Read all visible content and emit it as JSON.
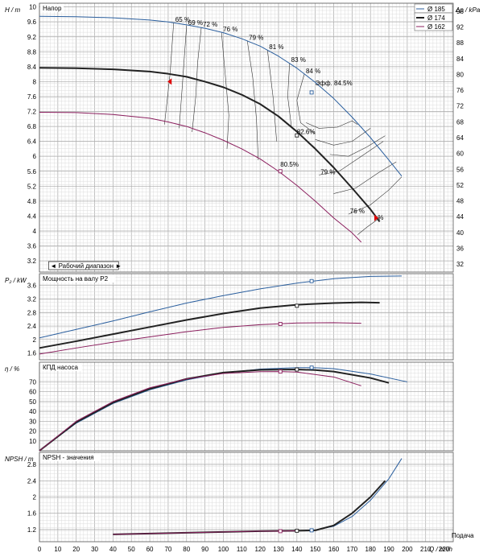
{
  "colors": {
    "d185": "#2b5f9e",
    "d174": "#222222",
    "d162": "#8b1f5e",
    "grid_minor": "#dcdcdc",
    "grid_major": "#a8a8a8",
    "eff_iso": "#333333",
    "red": "#e00000"
  },
  "chart_data": [
    {
      "type": "line",
      "title": "Напор",
      "ylabel": "H / m",
      "ylabel_right": "Δp / kPa",
      "xlim": [
        0,
        225
      ],
      "ylim": [
        2.9,
        10.1
      ],
      "ylim_right": [
        30,
        98
      ],
      "yticks_left": [
        3.2,
        3.6,
        4,
        4.4,
        4.8,
        5.2,
        5.6,
        6,
        6.4,
        6.8,
        7.2,
        7.6,
        8,
        8.4,
        8.8,
        9.2,
        9.6,
        10
      ],
      "yticks_right": [
        32,
        36,
        40,
        44,
        48,
        52,
        56,
        60,
        64,
        68,
        72,
        76,
        80,
        84,
        88,
        92,
        96
      ],
      "legend_position": "top-right",
      "legend": [
        "Ø 185",
        "Ø 174",
        "Ø 162"
      ],
      "series": [
        {
          "name": "Ø 185",
          "color_key": "d185",
          "width": 1,
          "x": [
            0,
            20,
            40,
            60,
            70,
            80,
            90,
            100,
            110,
            120,
            130,
            140,
            150,
            160,
            170,
            180,
            190,
            197
          ],
          "y": [
            9.75,
            9.74,
            9.71,
            9.65,
            9.6,
            9.52,
            9.43,
            9.31,
            9.15,
            8.95,
            8.68,
            8.36,
            7.98,
            7.55,
            7.05,
            6.5,
            5.9,
            5.47
          ]
        },
        {
          "name": "Ø 174",
          "color_key": "d174",
          "width": 2,
          "x": [
            0,
            20,
            40,
            60,
            70,
            80,
            90,
            100,
            110,
            120,
            130,
            140,
            150,
            160,
            170,
            180,
            185
          ],
          "y": [
            8.37,
            8.36,
            8.33,
            8.27,
            8.21,
            8.13,
            8.0,
            7.85,
            7.65,
            7.4,
            7.07,
            6.66,
            6.2,
            5.7,
            5.15,
            4.58,
            4.25
          ]
        },
        {
          "name": "Ø 162",
          "color_key": "d162",
          "width": 1,
          "x": [
            0,
            20,
            40,
            60,
            70,
            80,
            90,
            100,
            110,
            120,
            130,
            140,
            150,
            160,
            170,
            175
          ],
          "y": [
            7.18,
            7.17,
            7.12,
            7.02,
            6.92,
            6.8,
            6.63,
            6.43,
            6.2,
            5.93,
            5.6,
            5.22,
            4.8,
            4.35,
            3.95,
            3.7
          ]
        }
      ],
      "efficiency_isolines": [
        {
          "label": "65 %",
          "x": [
            73,
            71,
            68
          ],
          "y": [
            9.58,
            8.2,
            6.85
          ]
        },
        {
          "label": "69 %",
          "x": [
            80,
            78,
            76
          ],
          "y": [
            9.5,
            8.1,
            6.75
          ]
        },
        {
          "label": "72 %",
          "x": [
            88,
            86,
            85,
            83
          ],
          "y": [
            9.45,
            8.5,
            7.6,
            6.65
          ]
        },
        {
          "label": "76 %",
          "x": [
            99,
            101,
            103,
            102
          ],
          "y": [
            9.32,
            8.2,
            7.1,
            6.2
          ]
        },
        {
          "label": "79 %",
          "x": [
            113,
            116,
            118,
            119
          ],
          "y": [
            9.1,
            8.1,
            7.0,
            5.9
          ]
        },
        {
          "label": "81 %",
          "x": [
            124,
            127,
            129
          ],
          "y": [
            8.85,
            7.6,
            6.4
          ]
        },
        {
          "label": "83 %",
          "x": [
            136,
            135,
            137
          ],
          "y": [
            8.5,
            7.6,
            6.8
          ]
        },
        {
          "label": "84 %",
          "x": [
            144,
            140,
            142,
            150
          ],
          "y": [
            8.2,
            7.5,
            6.9,
            6.6
          ]
        },
        {
          "label": "",
          "x": [
            145,
            152,
            162,
            170,
            173
          ],
          "y": [
            6.9,
            6.75,
            6.78,
            6.95,
            6.85
          ]
        },
        {
          "label": "",
          "x": [
            150,
            160,
            170,
            180
          ],
          "y": [
            6.45,
            6.3,
            6.4,
            6.75
          ]
        },
        {
          "label": "",
          "x": [
            158,
            168,
            178,
            188
          ],
          "y": [
            6.05,
            6.0,
            6.25,
            6.55
          ]
        },
        {
          "label": "79 %",
          "x": [
            152,
            163,
            175,
            187
          ],
          "y": [
            5.5,
            5.6,
            6.0,
            6.4
          ]
        },
        {
          "label": "",
          "x": [
            160,
            172,
            184,
            194
          ],
          "y": [
            5.0,
            5.15,
            5.55,
            5.85
          ]
        },
        {
          "label": "76 %",
          "x": [
            168,
            180,
            190,
            197
          ],
          "y": [
            4.45,
            4.7,
            5.1,
            5.45
          ]
        },
        {
          "label": "",
          "x": [
            173,
            178,
            185
          ],
          "y": [
            3.9,
            4.1,
            4.35
          ]
        }
      ],
      "annotations": [
        {
          "text": "Эфф.  84.5%",
          "x": 150,
          "y": 7.9,
          "color_key": "d185"
        },
        {
          "text": "82.6%",
          "x": 140,
          "y": 6.6,
          "color_key": "d174"
        },
        {
          "text": "80.5%",
          "x": 131,
          "y": 5.72,
          "color_key": "d162"
        }
      ],
      "operating_points": [
        {
          "x": 148,
          "y": 7.71,
          "color_key": "d185"
        },
        {
          "x": 140,
          "y": 6.56,
          "color_key": "d174"
        },
        {
          "x": 131,
          "y": 5.6,
          "color_key": "d162"
        }
      ],
      "operating_range_label": "◄ Рабочий диапазон ►",
      "operating_range": [
        5,
        43
      ]
    },
    {
      "type": "line",
      "title": "Мощность на валу P2",
      "ylabel": "P₂ / kW",
      "xlim": [
        0,
        225
      ],
      "ylim": [
        1.4,
        3.95
      ],
      "yticks_left": [
        1.6,
        2,
        2.4,
        2.8,
        3.2,
        3.6
      ],
      "series": [
        {
          "name": "Ø 185",
          "color_key": "d185",
          "width": 1,
          "x": [
            0,
            20,
            40,
            60,
            80,
            100,
            120,
            140,
            160,
            180,
            197
          ],
          "y": [
            2.05,
            2.3,
            2.55,
            2.82,
            3.08,
            3.3,
            3.5,
            3.67,
            3.8,
            3.87,
            3.88
          ]
        },
        {
          "name": "Ø 174",
          "color_key": "d174",
          "width": 2,
          "x": [
            0,
            20,
            40,
            60,
            80,
            100,
            120,
            140,
            160,
            175,
            185
          ],
          "y": [
            1.75,
            1.95,
            2.16,
            2.37,
            2.58,
            2.77,
            2.93,
            3.03,
            3.08,
            3.1,
            3.09
          ]
        },
        {
          "name": "Ø 162",
          "color_key": "d162",
          "width": 1,
          "x": [
            0,
            20,
            40,
            60,
            80,
            100,
            120,
            140,
            160,
            175
          ],
          "y": [
            1.57,
            1.75,
            1.92,
            2.08,
            2.23,
            2.36,
            2.44,
            2.49,
            2.5,
            2.48
          ]
        }
      ],
      "operating_points": [
        {
          "x": 148,
          "y": 3.73,
          "color_key": "d185"
        },
        {
          "x": 140,
          "y": 3.0,
          "color_key": "d174"
        },
        {
          "x": 131,
          "y": 2.46,
          "color_key": "d162"
        }
      ]
    },
    {
      "type": "line",
      "title": "КПД насоса",
      "ylabel": "η / %",
      "xlim": [
        0,
        225
      ],
      "ylim": [
        0,
        90
      ],
      "yticks_left": [
        10,
        20,
        30,
        40,
        50,
        60,
        70
      ],
      "series": [
        {
          "name": "Ø 185",
          "color_key": "d185",
          "width": 1,
          "x": [
            0,
            20,
            40,
            60,
            80,
            100,
            120,
            140,
            150,
            160,
            180,
            200
          ],
          "y": [
            0,
            28,
            48,
            62,
            72,
            79,
            83,
            84.5,
            84.4,
            83.5,
            78,
            70
          ]
        },
        {
          "name": "Ø 174",
          "color_key": "d174",
          "width": 2,
          "x": [
            0,
            20,
            40,
            60,
            80,
            100,
            120,
            140,
            150,
            160,
            180,
            190
          ],
          "y": [
            0,
            29,
            49,
            63,
            73,
            79.5,
            82.2,
            82.6,
            82,
            80.5,
            74,
            69
          ]
        },
        {
          "name": "Ø 162",
          "color_key": "d162",
          "width": 1,
          "x": [
            0,
            20,
            40,
            60,
            80,
            100,
            120,
            131,
            140,
            160,
            175
          ],
          "y": [
            0,
            30,
            50,
            64,
            73,
            78.5,
            80.4,
            80.5,
            80,
            75,
            66
          ]
        }
      ],
      "operating_points": [
        {
          "x": 148,
          "y": 84.5,
          "color_key": "d185"
        },
        {
          "x": 140,
          "y": 82.6,
          "color_key": "d174"
        },
        {
          "x": 131,
          "y": 80.5,
          "color_key": "d162"
        }
      ]
    },
    {
      "type": "line",
      "title": "NPSH - значения",
      "ylabel": "NPSH / m",
      "xlabel": "Q / m³/h",
      "xlabel_prefix": "Подача",
      "xlim": [
        0,
        225
      ],
      "ylim": [
        0.9,
        3.1
      ],
      "xticks": [
        0,
        10,
        20,
        30,
        40,
        50,
        60,
        70,
        80,
        90,
        100,
        110,
        120,
        130,
        140,
        150,
        160,
        170,
        180,
        190,
        200,
        210,
        220
      ],
      "yticks_left": [
        1.2,
        1.6,
        2,
        2.4,
        2.8
      ],
      "series": [
        {
          "name": "Ø 185",
          "color_key": "d185",
          "width": 1,
          "x": [
            40,
            60,
            80,
            100,
            120,
            140,
            150,
            160,
            170,
            180,
            190,
            197
          ],
          "y": [
            1.08,
            1.1,
            1.12,
            1.14,
            1.16,
            1.17,
            1.19,
            1.28,
            1.52,
            1.92,
            2.45,
            2.95
          ]
        },
        {
          "name": "Ø 174",
          "color_key": "d174",
          "width": 2,
          "x": [
            40,
            60,
            80,
            100,
            120,
            140,
            150,
            160,
            170,
            180,
            188
          ],
          "y": [
            1.08,
            1.1,
            1.12,
            1.14,
            1.16,
            1.17,
            1.18,
            1.3,
            1.6,
            2.0,
            2.4
          ]
        },
        {
          "name": "Ø 162",
          "color_key": "d162",
          "width": 1,
          "x": [
            40,
            60,
            80,
            100,
            120,
            131,
            140
          ],
          "y": [
            1.08,
            1.1,
            1.12,
            1.14,
            1.16,
            1.16,
            1.17
          ]
        }
      ],
      "operating_points": [
        {
          "x": 148,
          "y": 1.18,
          "color_key": "d185"
        },
        {
          "x": 140,
          "y": 1.17,
          "color_key": "d174"
        },
        {
          "x": 131,
          "y": 1.16,
          "color_key": "d162"
        }
      ]
    }
  ]
}
